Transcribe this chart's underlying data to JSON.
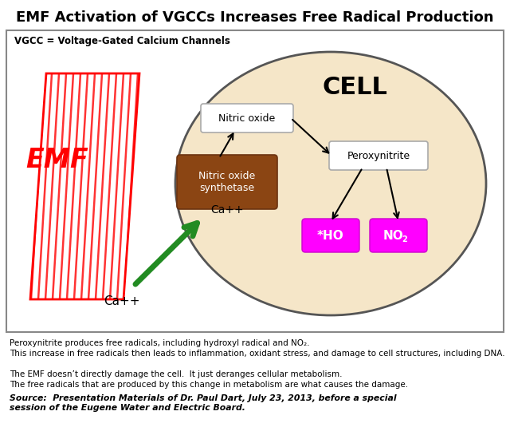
{
  "title": "EMF Activation of VGCCs Increases Free Radical Production",
  "subtitle": "VGCC = Voltage-Gated Calcium Channels",
  "cell_label": "CELL",
  "emf_label": "EMF",
  "ca_inside": "Ca++",
  "ca_outside": "Ca++",
  "box_nitric_oxide": "Nitric oxide",
  "box_nos": "Nitric oxide\nsynthetase",
  "box_peroxynitrite": "Peroxynitrite",
  "box_ho": "*HO",
  "box_no2_line1": "NO",
  "box_no2_sub": "2",
  "cell_fill": "#f5e6c8",
  "cell_edge": "#555555",
  "nos_fill": "#8B4513",
  "nos_text": "#ffffff",
  "nitric_oxide_fill": "#ffffff",
  "peroxynitrite_fill": "#ffffff",
  "ho_fill": "#ff00ff",
  "no2_fill": "#ff00ff",
  "ho_no2_text": "#ffffff",
  "bg_color": "#ffffff",
  "outer_border": "#888888",
  "footer_lines": [
    "Peroxynitrite produces free radicals, including hydroxyl radical and NO₂.",
    "This increase in free radicals then leads to inflammation, oxidant stress, and damage to cell structures, including DNA.",
    "The EMF doesn’t directly damage the cell.  It just deranges cellular metabolism.",
    "The free radicals that are produced by this change in metabolism are what causes the damage."
  ],
  "source_line": "Source:  Presentation Materials of Dr. Paul Dart, July 23, 2013, before a special\nsession of the Eugene Water and Electric Board."
}
